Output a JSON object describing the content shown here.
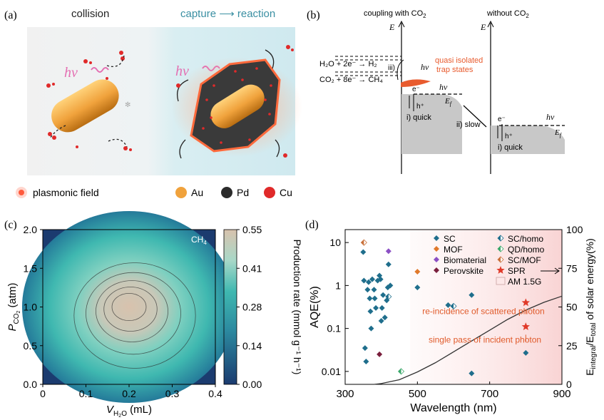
{
  "panel_a": {
    "label": "(a)",
    "title_left": "collision",
    "title_right": "capture ⟶ reaction",
    "hv": "hν",
    "legend": [
      {
        "text": "plasmonic field",
        "color": "#ff5a3c"
      },
      {
        "text": "Au",
        "color": "#f0a23c"
      },
      {
        "text": "Pd",
        "color": "#2b2b2b"
      },
      {
        "text": "Cu",
        "color": "#e02a2a"
      }
    ]
  },
  "panel_b": {
    "label": "(b)",
    "left_title": "coupling with CO",
    "left_title_sub": "2",
    "right_title": "without CO",
    "right_title_sub": "2",
    "axis_e": "E",
    "eq1": "H₂O + 2e⁻ → H₂",
    "eq2": "CO₂ + 8e⁻ → CH₄",
    "iii": "iii)",
    "hv": "hν",
    "trap_line1": "quasi isolated",
    "trap_line2": "trap states",
    "e_minus": "e⁻",
    "h_plus": "h⁺",
    "ef": "E",
    "ef_sub": "f",
    "quick": "i) quick",
    "slow": "ii) slow",
    "colors": {
      "trap": "#e85b2e",
      "band": "#c8c8c8"
    }
  },
  "panel_c": {
    "label": "(c)",
    "tag": "CH",
    "tag_sub": "4",
    "ylabel_main": "P",
    "ylabel_sub": "CO",
    "ylabel_subsub": "2",
    "ylabel_unit": "(atm)",
    "xlabel_main": "V",
    "xlabel_sub": "H",
    "xlabel_subsub": "2",
    "xlabel_sub2": "O",
    "xlabel_unit": "(mL)",
    "xticks": [
      "0",
      "0.1",
      "0.2",
      "0.3",
      "0.4"
    ],
    "yticks": [
      "0.0",
      "0.5",
      "1.0",
      "1.5",
      "2.0"
    ],
    "colorbar_ticks": [
      "0.55",
      "0.41",
      "0.28",
      "0.14",
      "0.00"
    ],
    "colorbar_label": "Production rate (mmol g⁻¹ h⁻¹)",
    "colors": {
      "low": "#1b3b6f",
      "mid": "#3fb8b0",
      "high": "#d8c2ad"
    }
  },
  "chart_data": [
    {
      "type": "heatmap",
      "panel": "(c)",
      "xlim": [
        0,
        0.4
      ],
      "ylim": [
        0.0,
        2.0
      ],
      "value_range": [
        0.0,
        0.55
      ],
      "peak": {
        "x": 0.2,
        "y": 1.0,
        "value": 0.55
      }
    },
    {
      "type": "scatter",
      "panel": "(d)",
      "x_label": "Wavelength (nm)",
      "y_label": "AQE(%)",
      "y2_label": "E_integral/E_total of solar energy(%)",
      "xlim": [
        300,
        900
      ],
      "ylim": [
        0.005,
        20
      ],
      "y_scale": "log",
      "y2lim": [
        0,
        100
      ],
      "x_ticks": [
        "300",
        "500",
        "700",
        "900"
      ],
      "y_ticks": [
        "0.01",
        "0.1",
        "1",
        "10"
      ],
      "y2_ticks": [
        "0",
        "25",
        "50",
        "75",
        "100"
      ],
      "series": [
        {
          "name": "SC",
          "color": "#1f6e8c",
          "marker": "diamond",
          "points": [
            [
              350,
              6
            ],
            [
              352,
              1.3
            ],
            [
              355,
              0.035
            ],
            [
              358,
              0.017
            ],
            [
              362,
              0.8
            ],
            [
              365,
              1.2
            ],
            [
              368,
              0.5
            ],
            [
              370,
              0.25
            ],
            [
              372,
              0.1
            ],
            [
              375,
              1.4
            ],
            [
              380,
              0.8
            ],
            [
              382,
              0.5
            ],
            [
              385,
              0.3
            ],
            [
              390,
              1.3
            ],
            [
              395,
              1.7
            ],
            [
              398,
              1.4
            ],
            [
              400,
              0.15
            ],
            [
              402,
              0.3
            ],
            [
              405,
              0.6
            ],
            [
              410,
              0.18
            ],
            [
              415,
              0.45
            ],
            [
              418,
              0.9
            ],
            [
              420,
              3.1
            ],
            [
              425,
              1.0
            ],
            [
              500,
              0.9
            ],
            [
              585,
              0.35
            ],
            [
              650,
              0.6
            ],
            [
              650,
              0.009
            ],
            [
              800,
              0.027
            ]
          ]
        },
        {
          "name": "MOF",
          "color": "#e0782a",
          "marker": "diamond",
          "points": [
            [
              352,
              10
            ],
            [
              500,
              2.1
            ]
          ]
        },
        {
          "name": "Biomaterial",
          "color": "#8b4fc4",
          "marker": "diamond",
          "points": [
            [
              420,
              6.3
            ]
          ]
        },
        {
          "name": "Perovskite",
          "color": "#7a1f3d",
          "marker": "diamond",
          "points": [
            [
              395,
              0.025
            ]
          ]
        },
        {
          "name": "SC/homo",
          "color": "#1f6e8c",
          "marker": "half-diamond",
          "points": [
            [
              420,
              0.55
            ],
            [
              600,
              0.33
            ]
          ]
        },
        {
          "name": "QD/homo",
          "color": "#3aa86a",
          "marker": "half-diamond",
          "points": [
            [
              455,
              0.01
            ]
          ]
        },
        {
          "name": "SC/MOF",
          "color": "#c8703a",
          "marker": "half-diamond",
          "points": [
            [
              352,
              10
            ]
          ]
        },
        {
          "name": "SPR",
          "color": "#e03a2a",
          "marker": "star",
          "points": [
            [
              800,
              0.4
            ],
            [
              800,
              0.11
            ]
          ]
        }
      ],
      "curve_name": "AM 1.5G",
      "curve": [
        [
          380,
          0
        ],
        [
          400,
          0.5
        ],
        [
          450,
          3
        ],
        [
          500,
          8
        ],
        [
          550,
          14
        ],
        [
          600,
          21
        ],
        [
          650,
          28
        ],
        [
          700,
          35
        ],
        [
          750,
          42
        ],
        [
          800,
          48
        ],
        [
          850,
          53
        ],
        [
          900,
          57
        ]
      ],
      "annotations": [
        "re-incidence of scattered photon",
        "single pass of incident photon"
      ]
    }
  ],
  "panel_d": {
    "label": "(d)",
    "legend_left": [
      "SC",
      "MOF",
      "Biomaterial",
      "Perovskite"
    ],
    "legend_right": [
      "SC/homo",
      "QD/homo",
      "SC/MOF",
      "SPR",
      "AM 1.5G"
    ],
    "ylabel": "AQE(%)",
    "y2label_main": "E",
    "y2label_sub1": "integral",
    "y2label_mid": "/E",
    "y2label_sub2": "total",
    "y2label_rest": " of solar energy(%)",
    "xlabel": "Wavelength (nm)",
    "ann1": "re-incidence of scattered photon",
    "ann2": "single pass of incident photon",
    "colors": {
      "shade": "#fbe3e3",
      "ann": "#e05a2a",
      "curve": "#333333"
    }
  }
}
